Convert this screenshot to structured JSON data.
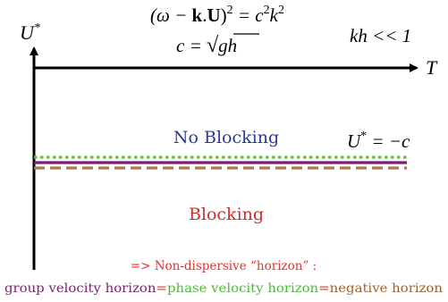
{
  "equations": {
    "dispersion_lhs": "(ω − ",
    "dispersion_k": "k",
    "dispersion_dot": ".",
    "dispersion_u": "U",
    "dispersion_close": ")",
    "dispersion_sq": "2",
    "dispersion_eq": " = c",
    "dispersion_rhs_sq": "2",
    "dispersion_k2": "k",
    "dispersion_k2_sq": "2",
    "speed_lhs": "c = ",
    "speed_sqrt_sign": "√",
    "speed_arg": "gh",
    "condition": "kh << 1"
  },
  "axes": {
    "y_label": "U",
    "y_label_star": "*",
    "x_label": "T"
  },
  "threshold": {
    "lhs": "U",
    "star": "*",
    "rhs": " = −c"
  },
  "regions": {
    "upper": "No Blocking",
    "lower": "Blocking"
  },
  "footer": {
    "line1": "=> Non-dispersive “horizon” :",
    "group": "group velocity horizon",
    "eq1": "=",
    "phase": "phase velocity horizon",
    "eq2": "=",
    "negative": "negative horizon"
  },
  "colors": {
    "no_blocking": "#2a3a9a",
    "blocking": "#d42a2a",
    "group_line": "#7a1f6e",
    "phase_line": "#63c23a",
    "negative_line": "#b0774b",
    "footer_red": "#e0342e",
    "group_text": "#7a1f6e",
    "phase_text": "#4fb83a",
    "negative_text": "#a0602a"
  }
}
